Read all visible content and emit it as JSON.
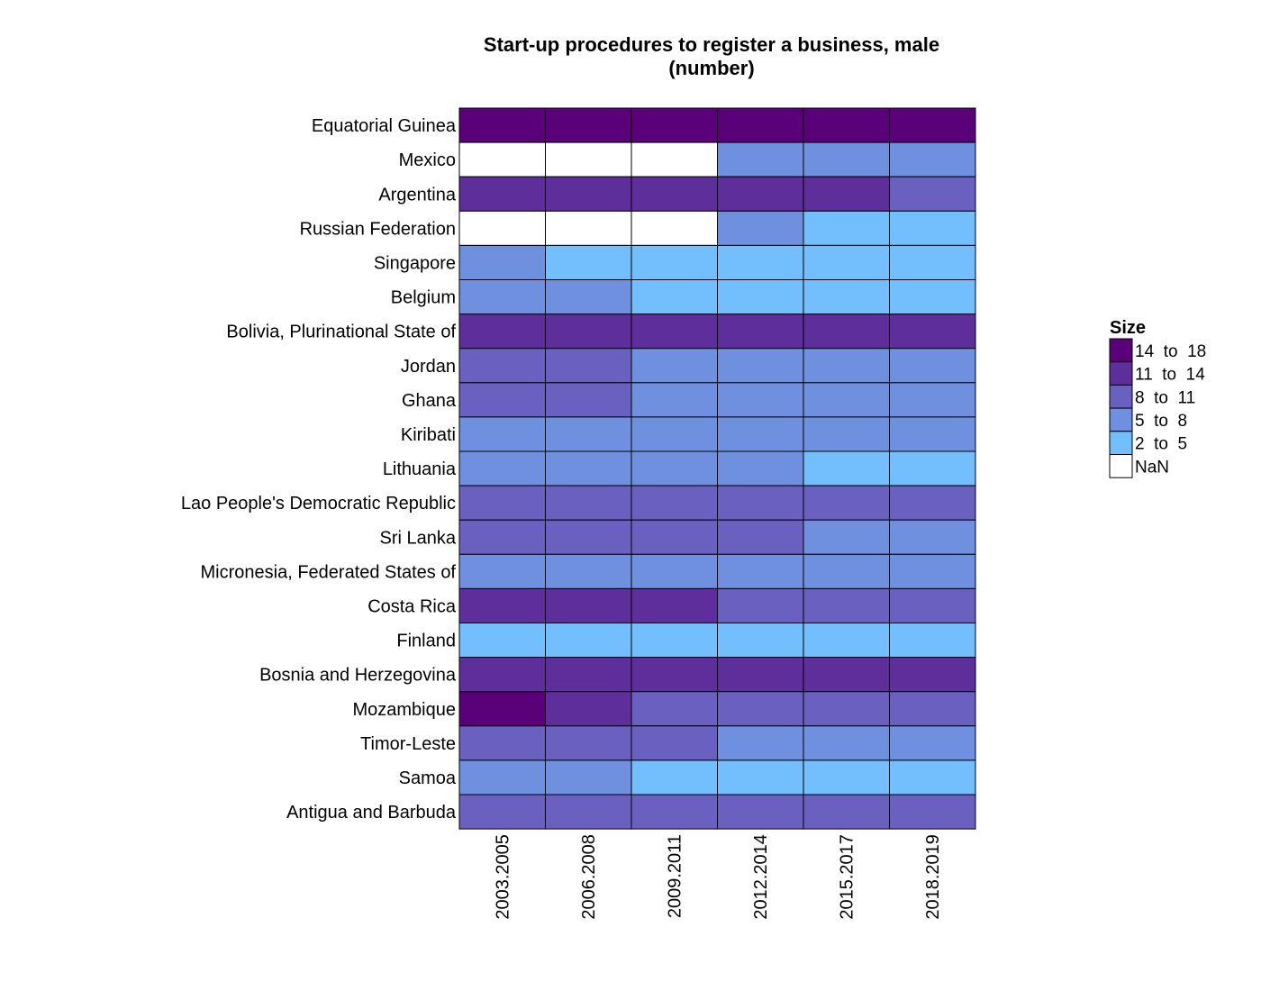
{
  "chart_data": {
    "type": "heatmap",
    "title_lines": [
      "Start-up procedures to register a business, male",
      "(number)"
    ],
    "xlabel": "",
    "ylabel": "",
    "columns": [
      "2003.2005",
      "2006.2008",
      "2009.2011",
      "2012.2014",
      "2015.2017",
      "2018.2019"
    ],
    "rows": [
      "Equatorial Guinea",
      "Mexico",
      "Argentina",
      "Russian Federation",
      "Singapore",
      "Belgium",
      "Bolivia, Plurinational State of",
      "Jordan",
      "Ghana",
      "Kiribati",
      "Lithuania",
      "Lao People's Democratic Republic",
      "Sri Lanka",
      "Micronesia, Federated States of",
      "Costa Rica",
      "Finland",
      "Bosnia and Herzegovina",
      "Mozambique",
      "Timor-Leste",
      "Samoa",
      "Antigua and Barbuda"
    ],
    "bin_values": [
      [
        "14 to 18",
        "14 to 18",
        "14 to 18",
        "14 to 18",
        "14 to 18",
        "14 to 18"
      ],
      [
        "NaN",
        "NaN",
        "NaN",
        "5 to 8",
        "5 to 8",
        "5 to 8"
      ],
      [
        "11 to 14",
        "11 to 14",
        "11 to 14",
        "11 to 14",
        "11 to 14",
        "8 to 11"
      ],
      [
        "NaN",
        "NaN",
        "NaN",
        "5 to 8",
        "2 to 5",
        "2 to 5"
      ],
      [
        "5 to 8",
        "2 to 5",
        "2 to 5",
        "2 to 5",
        "2 to 5",
        "2 to 5"
      ],
      [
        "5 to 8",
        "5 to 8",
        "2 to 5",
        "2 to 5",
        "2 to 5",
        "2 to 5"
      ],
      [
        "11 to 14",
        "11 to 14",
        "11 to 14",
        "11 to 14",
        "11 to 14",
        "11 to 14"
      ],
      [
        "8 to 11",
        "8 to 11",
        "5 to 8",
        "5 to 8",
        "5 to 8",
        "5 to 8"
      ],
      [
        "8 to 11",
        "8 to 11",
        "5 to 8",
        "5 to 8",
        "5 to 8",
        "5 to 8"
      ],
      [
        "5 to 8",
        "5 to 8",
        "5 to 8",
        "5 to 8",
        "5 to 8",
        "5 to 8"
      ],
      [
        "5 to 8",
        "5 to 8",
        "5 to 8",
        "5 to 8",
        "2 to 5",
        "2 to 5"
      ],
      [
        "8 to 11",
        "8 to 11",
        "8 to 11",
        "8 to 11",
        "8 to 11",
        "8 to 11"
      ],
      [
        "8 to 11",
        "8 to 11",
        "8 to 11",
        "8 to 11",
        "5 to 8",
        "5 to 8"
      ],
      [
        "5 to 8",
        "5 to 8",
        "5 to 8",
        "5 to 8",
        "5 to 8",
        "5 to 8"
      ],
      [
        "11 to 14",
        "11 to 14",
        "11 to 14",
        "8 to 11",
        "8 to 11",
        "8 to 11"
      ],
      [
        "2 to 5",
        "2 to 5",
        "2 to 5",
        "2 to 5",
        "2 to 5",
        "2 to 5"
      ],
      [
        "11 to 14",
        "11 to 14",
        "11 to 14",
        "11 to 14",
        "11 to 14",
        "11 to 14"
      ],
      [
        "14 to 18",
        "11 to 14",
        "8 to 11",
        "8 to 11",
        "8 to 11",
        "8 to 11"
      ],
      [
        "8 to 11",
        "8 to 11",
        "8 to 11",
        "5 to 8",
        "5 to 8",
        "5 to 8"
      ],
      [
        "5 to 8",
        "5 to 8",
        "2 to 5",
        "2 to 5",
        "2 to 5",
        "2 to 5"
      ],
      [
        "8 to 11",
        "8 to 11",
        "8 to 11",
        "8 to 11",
        "8 to 11",
        "8 to 11"
      ]
    ],
    "legend": {
      "title": "Size",
      "placement": "right",
      "items": [
        {
          "label": "14  to  18",
          "key": "14 to 18",
          "color": "#5a0078"
        },
        {
          "label": "11  to  14",
          "key": "11 to 14",
          "color": "#5e2e9a"
        },
        {
          "label": "8  to  11",
          "key": "8 to 11",
          "color": "#6a60bf"
        },
        {
          "label": "5  to  8",
          "key": "5 to 8",
          "color": "#6f90de"
        },
        {
          "label": "2  to  5",
          "key": "2 to 5",
          "color": "#73bffd"
        },
        {
          "label": "NaN",
          "key": "NaN",
          "color": "#ffffff"
        }
      ]
    },
    "grid": false
  }
}
